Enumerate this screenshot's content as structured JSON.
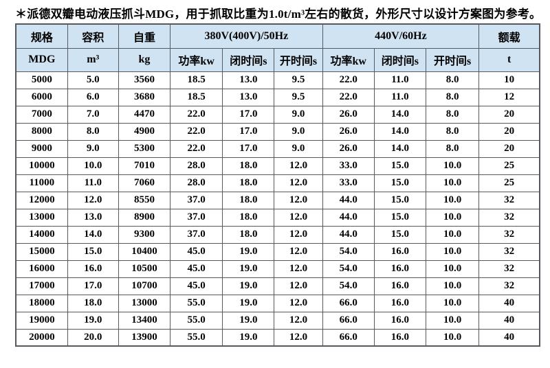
{
  "title": "＊派德双瓣电动液压抓斗MDG，用于抓取比重为1.0t/m³左右的散货，外形尺寸以设计方案图为参考。",
  "colors": {
    "header_bg": "#d0e3f2",
    "border": "#53595f",
    "text": "#000000"
  },
  "table": {
    "group_headers": {
      "spec": "规格",
      "volume": "容积",
      "weight": "自重",
      "power_50hz": "380V(400V)/50Hz",
      "power_60hz": "440V/60Hz",
      "rated_load": "额载"
    },
    "unit_headers": [
      "MDG",
      "m³",
      "kg",
      "功率kw",
      "闭时间s",
      "开时间s",
      "功率kw",
      "闭时间s",
      "开时间s",
      "t"
    ],
    "rows": [
      [
        "5000",
        "5.0",
        "3560",
        "18.5",
        "13.0",
        "9.5",
        "22.0",
        "11.0",
        "8.0",
        "10"
      ],
      [
        "6000",
        "6.0",
        "3680",
        "18.5",
        "13.0",
        "9.5",
        "22.0",
        "11.0",
        "8.0",
        "12"
      ],
      [
        "7000",
        "7.0",
        "4470",
        "22.0",
        "17.0",
        "9.0",
        "26.0",
        "14.0",
        "8.0",
        "20"
      ],
      [
        "8000",
        "8.0",
        "4900",
        "22.0",
        "17.0",
        "9.0",
        "26.0",
        "14.0",
        "8.0",
        "20"
      ],
      [
        "9000",
        "9.0",
        "5300",
        "22.0",
        "17.0",
        "9.0",
        "26.0",
        "14.0",
        "8.0",
        "20"
      ],
      [
        "10000",
        "10.0",
        "7010",
        "28.0",
        "18.0",
        "12.0",
        "33.0",
        "15.0",
        "10.0",
        "25"
      ],
      [
        "11000",
        "11.0",
        "7060",
        "28.0",
        "18.0",
        "12.0",
        "33.0",
        "15.0",
        "10.0",
        "25"
      ],
      [
        "12000",
        "12.0",
        "8550",
        "37.0",
        "18.0",
        "12.0",
        "44.0",
        "15.0",
        "10.0",
        "32"
      ],
      [
        "13000",
        "13.0",
        "8900",
        "37.0",
        "18.0",
        "12.0",
        "44.0",
        "15.0",
        "10.0",
        "32"
      ],
      [
        "14000",
        "14.0",
        "9300",
        "37.0",
        "18.0",
        "12.0",
        "44.0",
        "15.0",
        "10.0",
        "32"
      ],
      [
        "15000",
        "15.0",
        "10400",
        "45.0",
        "19.0",
        "12.0",
        "54.0",
        "16.0",
        "10.0",
        "32"
      ],
      [
        "16000",
        "16.0",
        "10500",
        "45.0",
        "19.0",
        "12.0",
        "54.0",
        "16.0",
        "10.0",
        "32"
      ],
      [
        "17000",
        "17.0",
        "10700",
        "45.0",
        "19.0",
        "12.0",
        "54.0",
        "16.0",
        "10.0",
        "32"
      ],
      [
        "18000",
        "18.0",
        "13000",
        "55.0",
        "19.0",
        "12.0",
        "66.0",
        "16.0",
        "10.0",
        "40"
      ],
      [
        "19000",
        "19.0",
        "13400",
        "55.0",
        "19.0",
        "12.0",
        "66.0",
        "16.0",
        "10.0",
        "40"
      ],
      [
        "20000",
        "20.0",
        "13900",
        "55.0",
        "19.0",
        "12.0",
        "66.0",
        "16.0",
        "10.0",
        "40"
      ]
    ]
  }
}
